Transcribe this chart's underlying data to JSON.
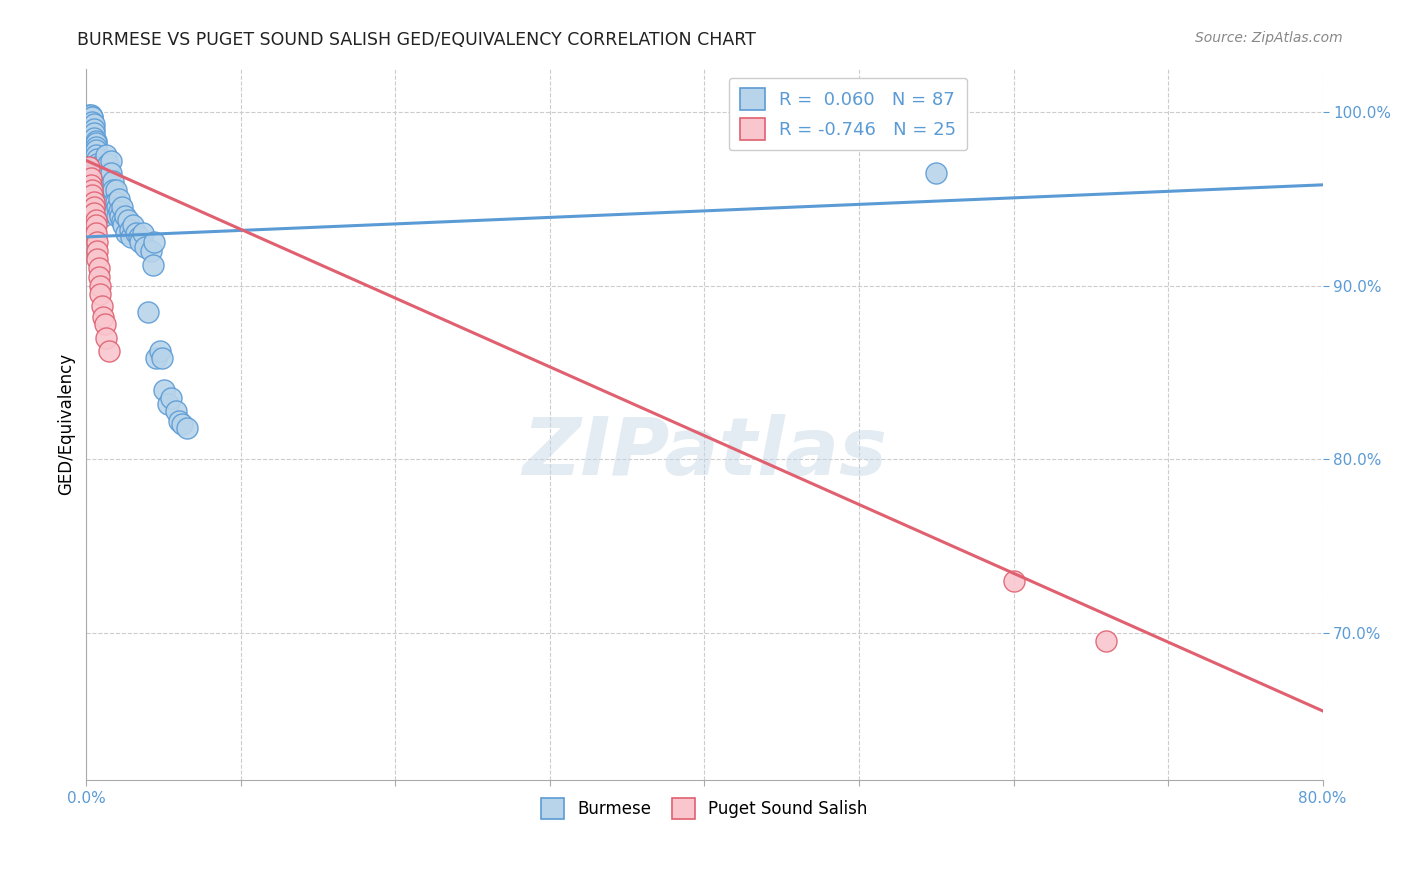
{
  "title": "BURMESE VS PUGET SOUND SALISH GED/EQUIVALENCY CORRELATION CHART",
  "source": "Source: ZipAtlas.com",
  "ylabel": "GED/Equivalency",
  "burmese_R": 0.06,
  "burmese_N": 87,
  "salish_R": -0.746,
  "salish_N": 25,
  "burmese_color": "#b8d4ea",
  "burmese_edge_color": "#5b9bd5",
  "salish_color": "#f9c6ce",
  "salish_edge_color": "#e06070",
  "watermark": "ZIPatlas",
  "xlim": [
    0.0,
    0.8
  ],
  "ylim": [
    0.615,
    1.025
  ],
  "burmese_trend_x": [
    0.0,
    0.8
  ],
  "burmese_trend_y": [
    0.928,
    0.958
  ],
  "salish_trend_x": [
    0.0,
    0.8
  ],
  "salish_trend_y": [
    0.972,
    0.655
  ],
  "yticks": [
    0.7,
    0.8,
    0.9,
    1.0
  ],
  "burmese_dots": [
    [
      0.002,
      0.998
    ],
    [
      0.003,
      0.998
    ],
    [
      0.004,
      0.997
    ],
    [
      0.004,
      0.997
    ],
    [
      0.004,
      0.994
    ],
    [
      0.005,
      0.993
    ],
    [
      0.005,
      0.99
    ],
    [
      0.005,
      0.988
    ],
    [
      0.005,
      0.985
    ],
    [
      0.006,
      0.983
    ],
    [
      0.006,
      0.982
    ],
    [
      0.006,
      0.98
    ],
    [
      0.006,
      0.978
    ],
    [
      0.006,
      0.975
    ],
    [
      0.007,
      0.973
    ],
    [
      0.007,
      0.97
    ],
    [
      0.007,
      0.968
    ],
    [
      0.007,
      0.968
    ],
    [
      0.007,
      0.966
    ],
    [
      0.008,
      0.965
    ],
    [
      0.008,
      0.963
    ],
    [
      0.008,
      0.961
    ],
    [
      0.008,
      0.96
    ],
    [
      0.008,
      0.958
    ],
    [
      0.009,
      0.957
    ],
    [
      0.009,
      0.955
    ],
    [
      0.009,
      0.954
    ],
    [
      0.009,
      0.952
    ],
    [
      0.01,
      0.95
    ],
    [
      0.01,
      0.948
    ],
    [
      0.01,
      0.947
    ],
    [
      0.01,
      0.945
    ],
    [
      0.011,
      0.944
    ],
    [
      0.011,
      0.942
    ],
    [
      0.011,
      0.94
    ],
    [
      0.012,
      0.96
    ],
    [
      0.012,
      0.955
    ],
    [
      0.012,
      0.95
    ],
    [
      0.013,
      0.975
    ],
    [
      0.013,
      0.968
    ],
    [
      0.013,
      0.962
    ],
    [
      0.014,
      0.97
    ],
    [
      0.014,
      0.965
    ],
    [
      0.015,
      0.965
    ],
    [
      0.015,
      0.958
    ],
    [
      0.016,
      0.972
    ],
    [
      0.016,
      0.965
    ],
    [
      0.017,
      0.96
    ],
    [
      0.017,
      0.955
    ],
    [
      0.018,
      0.948
    ],
    [
      0.018,
      0.942
    ],
    [
      0.019,
      0.955
    ],
    [
      0.019,
      0.948
    ],
    [
      0.02,
      0.945
    ],
    [
      0.02,
      0.94
    ],
    [
      0.021,
      0.95
    ],
    [
      0.021,
      0.943
    ],
    [
      0.022,
      0.94
    ],
    [
      0.023,
      0.945
    ],
    [
      0.023,
      0.937
    ],
    [
      0.024,
      0.935
    ],
    [
      0.025,
      0.94
    ],
    [
      0.026,
      0.93
    ],
    [
      0.027,
      0.938
    ],
    [
      0.028,
      0.932
    ],
    [
      0.029,
      0.928
    ],
    [
      0.03,
      0.935
    ],
    [
      0.032,
      0.93
    ],
    [
      0.034,
      0.928
    ],
    [
      0.035,
      0.925
    ],
    [
      0.037,
      0.93
    ],
    [
      0.038,
      0.922
    ],
    [
      0.04,
      0.885
    ],
    [
      0.042,
      0.92
    ],
    [
      0.043,
      0.912
    ],
    [
      0.044,
      0.925
    ],
    [
      0.045,
      0.858
    ],
    [
      0.048,
      0.862
    ],
    [
      0.049,
      0.858
    ],
    [
      0.05,
      0.84
    ],
    [
      0.053,
      0.832
    ],
    [
      0.055,
      0.835
    ],
    [
      0.058,
      0.828
    ],
    [
      0.06,
      0.822
    ],
    [
      0.062,
      0.82
    ],
    [
      0.065,
      0.818
    ],
    [
      0.55,
      0.965
    ]
  ],
  "salish_dots": [
    [
      0.002,
      0.968
    ],
    [
      0.003,
      0.962
    ],
    [
      0.003,
      0.958
    ],
    [
      0.004,
      0.955
    ],
    [
      0.004,
      0.952
    ],
    [
      0.005,
      0.948
    ],
    [
      0.005,
      0.945
    ],
    [
      0.005,
      0.942
    ],
    [
      0.006,
      0.938
    ],
    [
      0.006,
      0.935
    ],
    [
      0.006,
      0.93
    ],
    [
      0.007,
      0.925
    ],
    [
      0.007,
      0.92
    ],
    [
      0.007,
      0.915
    ],
    [
      0.008,
      0.91
    ],
    [
      0.008,
      0.905
    ],
    [
      0.009,
      0.9
    ],
    [
      0.009,
      0.895
    ],
    [
      0.01,
      0.888
    ],
    [
      0.011,
      0.882
    ],
    [
      0.012,
      0.878
    ],
    [
      0.013,
      0.87
    ],
    [
      0.015,
      0.862
    ],
    [
      0.6,
      0.73
    ],
    [
      0.66,
      0.695
    ]
  ]
}
